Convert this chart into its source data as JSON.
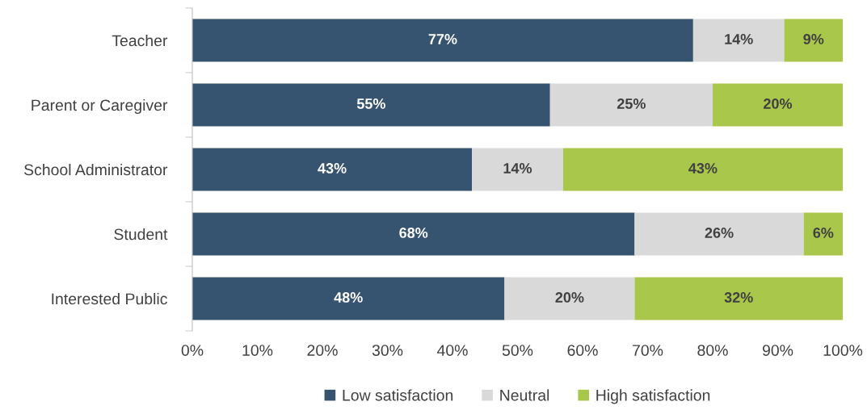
{
  "chart_data": {
    "type": "bar",
    "orientation": "horizontal",
    "stacked": true,
    "categories": [
      "Teacher",
      "Parent or Caregiver",
      "School Administrator",
      "Student",
      "Interested Public"
    ],
    "series": [
      {
        "name": "Low satisfaction",
        "color": "#36536f",
        "values": [
          77,
          55,
          43,
          68,
          48
        ],
        "value_labels": [
          "77%",
          "55%",
          "43%",
          "68%",
          "48%"
        ]
      },
      {
        "name": "Neutral",
        "color": "#d9d9d9",
        "values": [
          14,
          25,
          14,
          26,
          20
        ],
        "value_labels": [
          "14%",
          "25%",
          "14%",
          "26%",
          "20%"
        ]
      },
      {
        "name": "High satisfaction",
        "color": "#a9c84b",
        "values": [
          9,
          20,
          43,
          6,
          32
        ],
        "value_labels": [
          "9%",
          "20%",
          "43%",
          "6%",
          "32%"
        ]
      }
    ],
    "xlim": [
      0,
      100
    ],
    "xticks": [
      {
        "value": 0,
        "label": "0%"
      },
      {
        "value": 10,
        "label": "10%"
      },
      {
        "value": 20,
        "label": "20%"
      },
      {
        "value": 30,
        "label": "30%"
      },
      {
        "value": 40,
        "label": "40%"
      },
      {
        "value": 50,
        "label": "50%"
      },
      {
        "value": 60,
        "label": "60%"
      },
      {
        "value": 70,
        "label": "70%"
      },
      {
        "value": 80,
        "label": "80%"
      },
      {
        "value": 90,
        "label": "90%"
      },
      {
        "value": 100,
        "label": "100%"
      }
    ],
    "grid": false,
    "legend": "bottom"
  }
}
